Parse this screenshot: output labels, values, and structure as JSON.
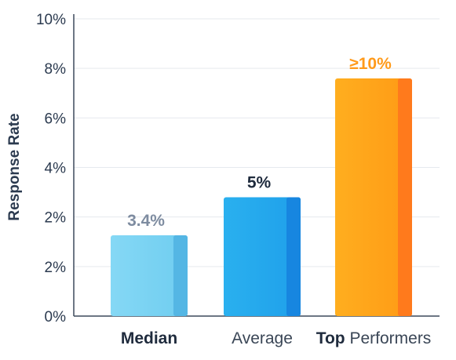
{
  "chart_data": {
    "type": "bar",
    "ylabel": "Response Rate",
    "y_ticks": [
      "0%",
      "2%",
      "2%",
      "4%",
      "6%",
      "8%",
      "10%"
    ],
    "ylim": [
      0,
      10
    ],
    "grid": true,
    "categories": [
      {
        "parts": [
          {
            "text": "Median",
            "bold": true
          }
        ]
      },
      {
        "parts": [
          {
            "text": "Average",
            "bold": false
          }
        ]
      },
      {
        "parts": [
          {
            "text": "Top",
            "bold": true
          },
          {
            "text": " Performers",
            "bold": false
          }
        ]
      }
    ],
    "values": [
      3.4,
      5,
      10
    ],
    "data_labels": [
      "3.4%",
      "5%",
      "≥10%"
    ],
    "colors": {
      "bars": [
        {
          "light": "#85d8f5",
          "mid": "#6fcdf0",
          "side": "#54b6e4"
        },
        {
          "light": "#2ab0ef",
          "mid": "#1fa0ea",
          "side": "#1786e0"
        },
        {
          "light": "#ffae1f",
          "mid": "#ff9a15",
          "side": "#ff7a1c"
        }
      ],
      "labels": [
        "#7e8ca0",
        "#1f2b3d",
        "#ff9a1a"
      ]
    }
  }
}
